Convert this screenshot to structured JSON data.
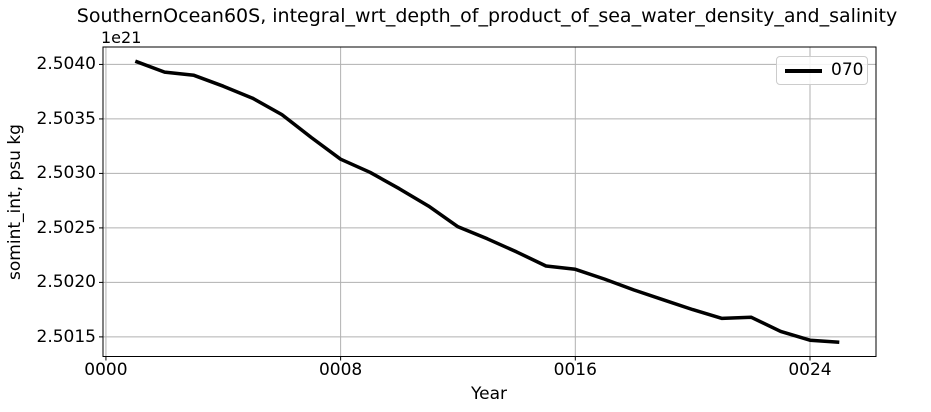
{
  "chart_data": {
    "type": "line",
    "title": "SouthernOcean60S, integral_wrt_depth_of_product_of_sea_water_density_and_salinity",
    "xlabel": "Year",
    "ylabel": "somint_int, psu kg",
    "offset_text": "1e21",
    "grid": true,
    "legend_position": "upper right",
    "xlim": [
      -0.1,
      26.25
    ],
    "ylim": [
      2.50132,
      2.50416
    ],
    "xticks": [
      0,
      8,
      16,
      24
    ],
    "xtick_labels": [
      "0000",
      "0008",
      "0016",
      "0024"
    ],
    "yticks": [
      2.5015,
      2.502,
      2.5025,
      2.503,
      2.5035,
      2.504
    ],
    "ytick_labels": [
      "2.5015",
      "2.5020",
      "2.5025",
      "2.5030",
      "2.5035",
      "2.5040"
    ],
    "colors": {
      "line": "#000000",
      "grid": "#b0b0b0",
      "spine": "#000000",
      "legend_edge": "#cccccc"
    },
    "series": [
      {
        "name": "070",
        "x": [
          1,
          2,
          3,
          4,
          5,
          6,
          7,
          8,
          9,
          10,
          11,
          12,
          13,
          14,
          15,
          16,
          17,
          18,
          19,
          20,
          21,
          22,
          23,
          24,
          25
        ],
        "y": [
          2.50403,
          2.50393,
          2.5039,
          2.5038,
          2.50369,
          2.50354,
          2.50333,
          2.50313,
          2.50301,
          2.50286,
          2.5027,
          2.50251,
          2.5024,
          2.50228,
          2.50215,
          2.50212,
          2.50203,
          2.50193,
          2.50184,
          2.50175,
          2.50167,
          2.50168,
          2.50155,
          2.50147,
          2.50145
        ]
      }
    ]
  }
}
